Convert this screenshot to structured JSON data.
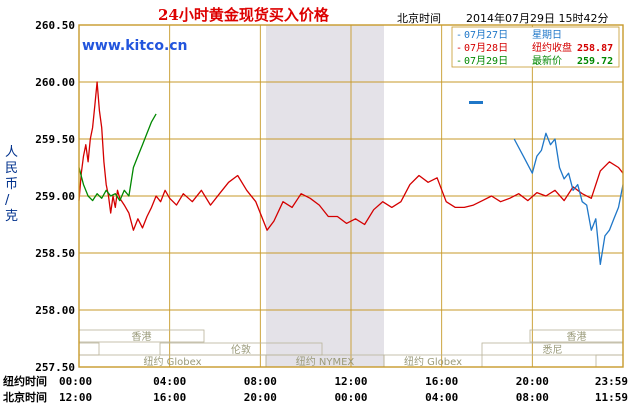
{
  "chart_data": {
    "type": "line",
    "title": "24小时黄金现货买入价格",
    "header_timezone": "北京时间",
    "header_datetime": "2014年07月29日 15时42分",
    "site": "www.kitco.cn",
    "ylabel": "人民币/克",
    "ylim": [
      257.5,
      260.5
    ],
    "y_ticks": [
      "260.50",
      "260.00",
      "259.50",
      "259.00",
      "258.50",
      "258.00",
      "257.50"
    ],
    "x_row1_label": "纽约时间",
    "x_row2_label": "北京时间",
    "x_ticks_ny": [
      "00:00",
      "04:00",
      "08:00",
      "12:00",
      "16:00",
      "20:00",
      "23:59"
    ],
    "x_ticks_bj": [
      "12:00",
      "16:00",
      "20:00",
      "00:00",
      "04:00",
      "08:00",
      "11:59"
    ],
    "legend": [
      {
        "date": "07月27日",
        "text": "星期日",
        "value": "",
        "color": "#1f77c8"
      },
      {
        "date": "07月28日",
        "text": "纽约收盘",
        "value": "258.87",
        "color": "#d40000"
      },
      {
        "date": "07月29日",
        "text": "最新价",
        "value": "259.72",
        "color": "#008800"
      }
    ],
    "markets": [
      {
        "name": "香港"
      },
      {
        "name": "伦敦"
      },
      {
        "name": "纽约 Globex"
      },
      {
        "name": "纽约 NYMEX"
      },
      {
        "name": "纽约 Globex"
      },
      {
        "name": "香港"
      },
      {
        "name": "悉尼"
      }
    ],
    "series": [
      {
        "name": "07月28日",
        "color": "#d40000",
        "x": [
          0,
          0.1,
          0.2,
          0.3,
          0.4,
          0.5,
          0.6,
          0.7,
          0.8,
          0.9,
          1.0,
          1.1,
          1.2,
          1.3,
          1.4,
          1.5,
          1.6,
          1.7,
          1.8,
          1.9,
          2.0,
          2.2,
          2.4,
          2.6,
          2.8,
          3.0,
          3.2,
          3.4,
          3.6,
          3.8,
          4.0,
          4.3,
          4.6,
          5.0,
          5.4,
          5.8,
          6.2,
          6.6,
          7.0,
          7.4,
          7.8,
          8.0,
          8.3,
          8.6,
          9.0,
          9.4,
          9.8,
          10.2,
          10.6,
          11.0,
          11.4,
          11.8,
          12.2,
          12.6,
          13.0,
          13.4,
          13.8,
          14.2,
          14.6,
          15.0,
          15.4,
          15.8,
          16.2,
          16.6,
          17.0,
          17.4,
          17.8,
          18.2,
          18.6,
          19.0,
          19.4,
          19.8,
          20.2,
          20.6,
          21.0,
          21.4,
          21.8,
          22.2,
          22.6,
          23.0,
          23.4,
          23.8,
          24.0
        ],
        "y": [
          258.96,
          259.2,
          259.35,
          259.45,
          259.3,
          259.5,
          259.6,
          259.8,
          260.0,
          259.75,
          259.6,
          259.3,
          259.1,
          259.0,
          258.85,
          259.0,
          258.9,
          259.05,
          258.98,
          258.95,
          258.92,
          258.85,
          258.7,
          258.8,
          258.72,
          258.82,
          258.9,
          259.0,
          258.95,
          259.05,
          258.98,
          258.92,
          259.02,
          258.95,
          259.05,
          258.92,
          259.02,
          259.12,
          259.18,
          259.05,
          258.95,
          258.85,
          258.7,
          258.78,
          258.95,
          258.9,
          259.02,
          258.98,
          258.92,
          258.82,
          258.82,
          258.76,
          258.8,
          258.75,
          258.88,
          258.95,
          258.9,
          258.95,
          259.1,
          259.18,
          259.12,
          259.16,
          258.95,
          258.9,
          258.9,
          258.92,
          258.96,
          259.0,
          258.95,
          258.98,
          259.02,
          258.96,
          259.03,
          259.0,
          259.05,
          258.96,
          259.08,
          259.02,
          258.98,
          259.22,
          259.3,
          259.25,
          259.2
        ]
      },
      {
        "name": "07月29日",
        "color": "#008800",
        "x": [
          0,
          0.2,
          0.4,
          0.6,
          0.8,
          1.0,
          1.2,
          1.4,
          1.6,
          1.8,
          2.0,
          2.2,
          2.4,
          2.6,
          2.8,
          3.0,
          3.2,
          3.4
        ],
        "y": [
          259.25,
          259.1,
          259.0,
          258.96,
          259.02,
          258.98,
          259.05,
          259.0,
          259.02,
          258.96,
          259.05,
          259.0,
          259.25,
          259.35,
          259.45,
          259.55,
          259.65,
          259.72
        ]
      },
      {
        "name": "07月27日",
        "color": "#1f77c8",
        "x": [
          19.2,
          19.6,
          20.0,
          20.2,
          20.4,
          20.6,
          20.8,
          21.0,
          21.2,
          21.4,
          21.6,
          21.8,
          22.0,
          22.2,
          22.4,
          22.6,
          22.8,
          23.0,
          23.2,
          23.4,
          23.6,
          23.8,
          24.0
        ],
        "y": [
          259.5,
          259.35,
          259.2,
          259.35,
          259.4,
          259.55,
          259.45,
          259.5,
          259.25,
          259.15,
          259.2,
          259.05,
          259.1,
          258.95,
          258.92,
          258.7,
          258.8,
          258.4,
          258.65,
          258.7,
          258.8,
          258.9,
          259.1
        ]
      }
    ]
  }
}
